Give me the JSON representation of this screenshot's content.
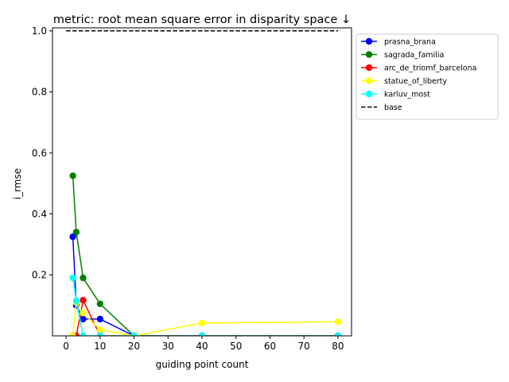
{
  "chart_data": {
    "type": "line",
    "title": "metric: root mean square error in disparity space ↓",
    "xlabel": "guiding point count",
    "ylabel": "i_rmse",
    "xlim": [
      -4,
      84
    ],
    "ylim": [
      0,
      1.01
    ],
    "xticks": [
      0,
      10,
      20,
      30,
      40,
      50,
      60,
      70,
      80
    ],
    "yticks": [
      0.2,
      0.4,
      0.6,
      0.8,
      1.0
    ],
    "xtick_labels": [
      "0",
      "10",
      "20",
      "30",
      "40",
      "50",
      "60",
      "70",
      "80"
    ],
    "ytick_labels": [
      "0.2",
      "0.4",
      "0.6",
      "0.8",
      "1.0"
    ],
    "grid": false,
    "legend_position": "outside-upper-right",
    "series": [
      {
        "name": "prasna_brana",
        "color": "#0000ff",
        "marker": true,
        "x": [
          2,
          3,
          5,
          10,
          20,
          40,
          80
        ],
        "y": [
          0.325,
          0.1,
          0.055,
          0.055,
          0.0,
          0.0,
          0.0
        ]
      },
      {
        "name": "sagrada_familia",
        "color": "#008000",
        "marker": true,
        "x": [
          2,
          3,
          5,
          10,
          20,
          40,
          80
        ],
        "y": [
          0.525,
          0.34,
          0.19,
          0.105,
          0.0,
          0.0,
          0.0
        ]
      },
      {
        "name": "arc_de_triomf_barcelona",
        "color": "#ff0000",
        "marker": true,
        "x": [
          2,
          3,
          5,
          10,
          20,
          40,
          80
        ],
        "y": [
          0.0,
          0.0,
          0.117,
          0.0,
          0.0,
          0.0,
          0.0
        ]
      },
      {
        "name": "statue_of_liberty",
        "color": "#ffff00",
        "marker": true,
        "x": [
          2,
          3,
          5,
          10,
          20,
          40,
          80
        ],
        "y": [
          0.0,
          0.11,
          0.075,
          0.02,
          0.0,
          0.042,
          0.046
        ]
      },
      {
        "name": "karluv_most",
        "color": "#00ffff",
        "marker": true,
        "x": [
          2,
          3,
          5,
          10,
          20,
          40,
          80
        ],
        "y": [
          0.19,
          0.115,
          0.0,
          0.0,
          0.0,
          0.0,
          0.0
        ]
      },
      {
        "name": "base",
        "color": "#000000",
        "marker": false,
        "dashed": true,
        "x": [
          0,
          80
        ],
        "y": [
          1.0,
          1.0
        ]
      }
    ]
  }
}
